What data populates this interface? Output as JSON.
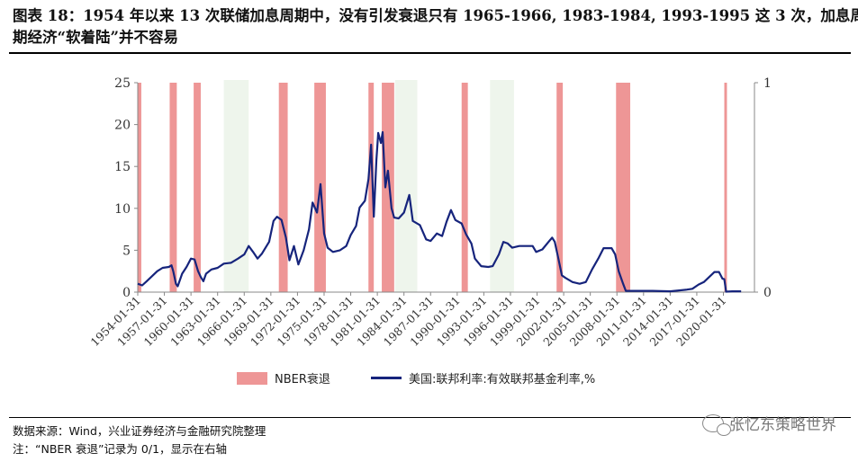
{
  "header": {
    "title_line1": "图表 18：1954 年以来 13 次联储加息周期中，没有引发衰退只有 1965-1966, 1983-1984, 1993-1995 这 3 次，加息周",
    "title_line2": "期经济“软着陆”并不容易"
  },
  "footer": {
    "source": "数据来源：Wind，兴业证券经济与金融研究院整理",
    "note": "注：“NBER 衰退”记录为 0/1，显示在右轴"
  },
  "watermark": {
    "text": "张忆东策略世界",
    "icon": "wechat-icon"
  },
  "colors": {
    "recession": "#EE9696",
    "soft_landing": "#EEF5EC",
    "rate_line": "#16247C",
    "axis": "#888888"
  },
  "chart_data": {
    "type": "line",
    "title": "",
    "xlabel": "",
    "ylabel": "",
    "y_left_range": [
      0,
      25
    ],
    "y_left_ticks": [
      "0",
      "5",
      "10",
      "15",
      "20",
      "25"
    ],
    "y_right_range": [
      0,
      1
    ],
    "y_right_ticks": [
      "0",
      "1"
    ],
    "x_range": [
      1954.0,
      2023.5
    ],
    "x_ticks": [
      "1954-01-31",
      "1957-01-31",
      "1960-01-31",
      "1963-01-31",
      "1966-01-31",
      "1969-01-31",
      "1972-01-31",
      "1975-01-31",
      "1978-01-31",
      "1981-01-31",
      "1984-01-31",
      "1987-01-31",
      "1990-01-31",
      "1993-01-31",
      "1996-01-31",
      "1999-01-31",
      "2002-01-31",
      "2005-01-31",
      "2008-01-31",
      "2011-01-31",
      "2014-01-31",
      "2017-01-31",
      "2020-01-31"
    ],
    "x_tick_years": [
      1954,
      1957,
      1960,
      1963,
      1966,
      1969,
      1972,
      1975,
      1978,
      1981,
      1984,
      1987,
      1990,
      1993,
      1996,
      1999,
      2002,
      2005,
      2008,
      2011,
      2014,
      2017,
      2020
    ],
    "grid": false,
    "legend_position": "bottom",
    "series": [
      {
        "name": "NBER衰退",
        "type": "bar",
        "axis": "right",
        "periods": [
          [
            1953.6,
            1954.4
          ],
          [
            1957.6,
            1958.4
          ],
          [
            1960.3,
            1961.1
          ],
          [
            1969.9,
            1970.9
          ],
          [
            1973.9,
            1975.2
          ],
          [
            1980.0,
            1980.6
          ],
          [
            1981.5,
            1982.9
          ],
          [
            1990.5,
            1991.2
          ],
          [
            2001.2,
            2001.9
          ],
          [
            2007.9,
            2009.5
          ],
          [
            2020.1,
            2020.4
          ]
        ]
      },
      {
        "name": "",
        "type": "band",
        "axis": "right",
        "periods": [
          [
            1963.7,
            1966.5
          ],
          [
            1983.0,
            1985.5
          ],
          [
            1993.7,
            1996.4
          ]
        ]
      },
      {
        "name": "美国:联邦利率:有效联邦基金利率,%",
        "type": "line",
        "axis": "left",
        "points": [
          [
            1954.0,
            1.0
          ],
          [
            1954.5,
            0.8
          ],
          [
            1955.0,
            1.3
          ],
          [
            1955.6,
            1.9
          ],
          [
            1956.2,
            2.5
          ],
          [
            1956.8,
            2.9
          ],
          [
            1957.5,
            3.0
          ],
          [
            1957.8,
            3.2
          ],
          [
            1958.0,
            2.5
          ],
          [
            1958.3,
            1.0
          ],
          [
            1958.5,
            0.7
          ],
          [
            1959.0,
            2.2
          ],
          [
            1959.5,
            3.0
          ],
          [
            1960.0,
            4.0
          ],
          [
            1960.4,
            3.9
          ],
          [
            1960.8,
            2.5
          ],
          [
            1961.1,
            1.8
          ],
          [
            1961.4,
            1.3
          ],
          [
            1961.7,
            2.2
          ],
          [
            1962.3,
            2.7
          ],
          [
            1963.0,
            2.9
          ],
          [
            1963.7,
            3.4
          ],
          [
            1964.5,
            3.5
          ],
          [
            1965.3,
            4.0
          ],
          [
            1966.0,
            4.5
          ],
          [
            1966.5,
            5.5
          ],
          [
            1967.0,
            4.8
          ],
          [
            1967.5,
            4.0
          ],
          [
            1968.0,
            4.6
          ],
          [
            1968.8,
            6.0
          ],
          [
            1969.3,
            8.5
          ],
          [
            1969.7,
            9.0
          ],
          [
            1970.2,
            8.6
          ],
          [
            1970.7,
            6.5
          ],
          [
            1971.1,
            3.8
          ],
          [
            1971.6,
            5.5
          ],
          [
            1972.1,
            3.3
          ],
          [
            1972.7,
            5.0
          ],
          [
            1973.3,
            7.5
          ],
          [
            1973.7,
            10.7
          ],
          [
            1974.2,
            9.5
          ],
          [
            1974.6,
            12.9
          ],
          [
            1975.0,
            7.0
          ],
          [
            1975.4,
            5.3
          ],
          [
            1976.0,
            4.8
          ],
          [
            1976.8,
            5.0
          ],
          [
            1977.5,
            5.5
          ],
          [
            1978.0,
            6.8
          ],
          [
            1978.6,
            7.9
          ],
          [
            1979.0,
            10.1
          ],
          [
            1979.6,
            10.9
          ],
          [
            1980.0,
            13.5
          ],
          [
            1980.3,
            17.6
          ],
          [
            1980.6,
            9.0
          ],
          [
            1980.9,
            15.8
          ],
          [
            1981.1,
            19.0
          ],
          [
            1981.4,
            17.8
          ],
          [
            1981.6,
            19.1
          ],
          [
            1981.9,
            12.5
          ],
          [
            1982.2,
            14.5
          ],
          [
            1982.6,
            10.0
          ],
          [
            1982.9,
            8.9
          ],
          [
            1983.4,
            8.8
          ],
          [
            1984.0,
            9.5
          ],
          [
            1984.6,
            11.6
          ],
          [
            1985.0,
            8.5
          ],
          [
            1985.8,
            8.0
          ],
          [
            1986.5,
            6.3
          ],
          [
            1987.0,
            6.1
          ],
          [
            1987.7,
            7.0
          ],
          [
            1988.3,
            6.7
          ],
          [
            1988.8,
            8.4
          ],
          [
            1989.3,
            9.8
          ],
          [
            1989.8,
            8.6
          ],
          [
            1990.5,
            8.2
          ],
          [
            1991.0,
            6.9
          ],
          [
            1991.6,
            5.8
          ],
          [
            1992.0,
            4.0
          ],
          [
            1992.7,
            3.1
          ],
          [
            1993.5,
            3.0
          ],
          [
            1994.0,
            3.1
          ],
          [
            1994.7,
            4.5
          ],
          [
            1995.2,
            6.0
          ],
          [
            1995.7,
            5.8
          ],
          [
            1996.2,
            5.3
          ],
          [
            1997.0,
            5.5
          ],
          [
            1997.8,
            5.5
          ],
          [
            1998.5,
            5.5
          ],
          [
            1998.9,
            4.8
          ],
          [
            1999.6,
            5.1
          ],
          [
            2000.3,
            6.0
          ],
          [
            2000.7,
            6.5
          ],
          [
            2001.0,
            6.0
          ],
          [
            2001.4,
            4.0
          ],
          [
            2001.8,
            2.0
          ],
          [
            2002.2,
            1.7
          ],
          [
            2003.0,
            1.2
          ],
          [
            2003.8,
            1.0
          ],
          [
            2004.5,
            1.2
          ],
          [
            2005.2,
            2.7
          ],
          [
            2005.9,
            4.0
          ],
          [
            2006.5,
            5.25
          ],
          [
            2007.4,
            5.25
          ],
          [
            2007.8,
            4.5
          ],
          [
            2008.2,
            2.5
          ],
          [
            2008.7,
            1.0
          ],
          [
            2009.0,
            0.15
          ],
          [
            2010.0,
            0.15
          ],
          [
            2012.0,
            0.15
          ],
          [
            2014.0,
            0.1
          ],
          [
            2015.9,
            0.3
          ],
          [
            2016.5,
            0.4
          ],
          [
            2017.2,
            0.9
          ],
          [
            2017.8,
            1.2
          ],
          [
            2018.4,
            1.8
          ],
          [
            2019.0,
            2.4
          ],
          [
            2019.5,
            2.4
          ],
          [
            2019.9,
            1.6
          ],
          [
            2020.1,
            1.55
          ],
          [
            2020.3,
            0.05
          ],
          [
            2021.0,
            0.1
          ],
          [
            2022.0,
            0.1
          ]
        ]
      }
    ]
  }
}
